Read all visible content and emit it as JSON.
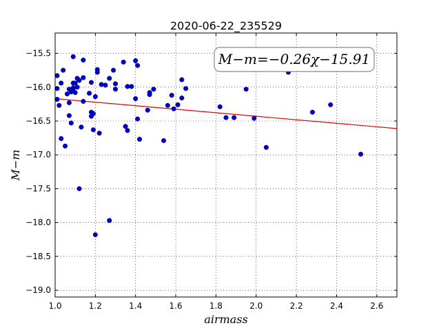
{
  "chart_data": {
    "type": "scatter",
    "title": "2020-06-22_235529",
    "xlabel": "airmass",
    "ylabel": "M−m",
    "xlim": [
      1.0,
      2.7
    ],
    "ylim": [
      -19.1,
      -15.2
    ],
    "y_inverted": true,
    "grid": true,
    "x_ticks": [
      1.0,
      1.2,
      1.4,
      1.6,
      1.8,
      2.0,
      2.2,
      2.4,
      2.6
    ],
    "x_tick_labels": [
      "1.0",
      "1.2",
      "1.4",
      "1.6",
      "1.8",
      "2.0",
      "2.2",
      "2.4",
      "2.6"
    ],
    "y_ticks": [
      -15.5,
      -16.0,
      -16.5,
      -17.0,
      -17.5,
      -18.0,
      -18.5,
      -19.0
    ],
    "y_tick_labels": [
      "−15.5",
      "−16.0",
      "−16.5",
      "−17.0",
      "−17.5",
      "−18.0",
      "−18.5",
      "−19.0"
    ],
    "annotation": "M−m=−0.26χ−15.91",
    "fit": {
      "slope": -0.26,
      "intercept": -15.91,
      "x_range": [
        1.02,
        2.7
      ],
      "color": "#e00000"
    },
    "point_color": "#0000cc",
    "points": [
      [
        1.01,
        -15.83
      ],
      [
        1.01,
        -16.02
      ],
      [
        1.01,
        -16.18
      ],
      [
        1.02,
        -16.27
      ],
      [
        1.03,
        -16.76
      ],
      [
        1.03,
        -15.94
      ],
      [
        1.04,
        -15.75
      ],
      [
        1.05,
        -16.87
      ],
      [
        1.06,
        -16.1
      ],
      [
        1.07,
        -16.03
      ],
      [
        1.07,
        -16.23
      ],
      [
        1.07,
        -16.42
      ],
      [
        1.08,
        -16.53
      ],
      [
        1.08,
        -16.07
      ],
      [
        1.09,
        -16.01
      ],
      [
        1.09,
        -15.94
      ],
      [
        1.09,
        -16.05
      ],
      [
        1.09,
        -15.55
      ],
      [
        1.1,
        -16.08
      ],
      [
        1.1,
        -15.94
      ],
      [
        1.11,
        -16.0
      ],
      [
        1.11,
        -15.87
      ],
      [
        1.12,
        -15.9
      ],
      [
        1.12,
        -17.5
      ],
      [
        1.13,
        -16.59
      ],
      [
        1.14,
        -15.6
      ],
      [
        1.14,
        -15.86
      ],
      [
        1.14,
        -16.21
      ],
      [
        1.17,
        -16.09
      ],
      [
        1.18,
        -16.37
      ],
      [
        1.18,
        -16.43
      ],
      [
        1.18,
        -15.93
      ],
      [
        1.19,
        -16.63
      ],
      [
        1.19,
        -16.39
      ],
      [
        1.2,
        -18.18
      ],
      [
        1.2,
        -16.14
      ],
      [
        1.21,
        -15.74
      ],
      [
        1.21,
        -15.78
      ],
      [
        1.22,
        -16.68
      ],
      [
        1.23,
        -15.96
      ],
      [
        1.25,
        -15.97
      ],
      [
        1.27,
        -17.97
      ],
      [
        1.27,
        -15.87
      ],
      [
        1.29,
        -15.75
      ],
      [
        1.3,
        -16.03
      ],
      [
        1.3,
        -15.95
      ],
      [
        1.34,
        -15.63
      ],
      [
        1.35,
        -16.58
      ],
      [
        1.36,
        -15.99
      ],
      [
        1.36,
        -16.64
      ],
      [
        1.38,
        -15.99
      ],
      [
        1.4,
        -15.61
      ],
      [
        1.4,
        -16.17
      ],
      [
        1.41,
        -15.68
      ],
      [
        1.41,
        -16.47
      ],
      [
        1.42,
        -16.77
      ],
      [
        1.46,
        -16.34
      ],
      [
        1.47,
        -16.08
      ],
      [
        1.47,
        -16.11
      ],
      [
        1.49,
        -16.03
      ],
      [
        1.54,
        -16.79
      ],
      [
        1.56,
        -16.27
      ],
      [
        1.58,
        -16.12
      ],
      [
        1.59,
        -16.32
      ],
      [
        1.61,
        -16.26
      ],
      [
        1.63,
        -15.89
      ],
      [
        1.63,
        -16.16
      ],
      [
        1.65,
        -16.02
      ],
      [
        1.82,
        -16.29
      ],
      [
        1.85,
        -16.45
      ],
      [
        1.89,
        -16.45
      ],
      [
        1.95,
        -16.03
      ],
      [
        1.99,
        -16.46
      ],
      [
        2.05,
        -16.89
      ],
      [
        2.16,
        -15.78
      ],
      [
        2.28,
        -16.37
      ],
      [
        2.37,
        -16.26
      ],
      [
        2.52,
        -16.99
      ]
    ]
  }
}
